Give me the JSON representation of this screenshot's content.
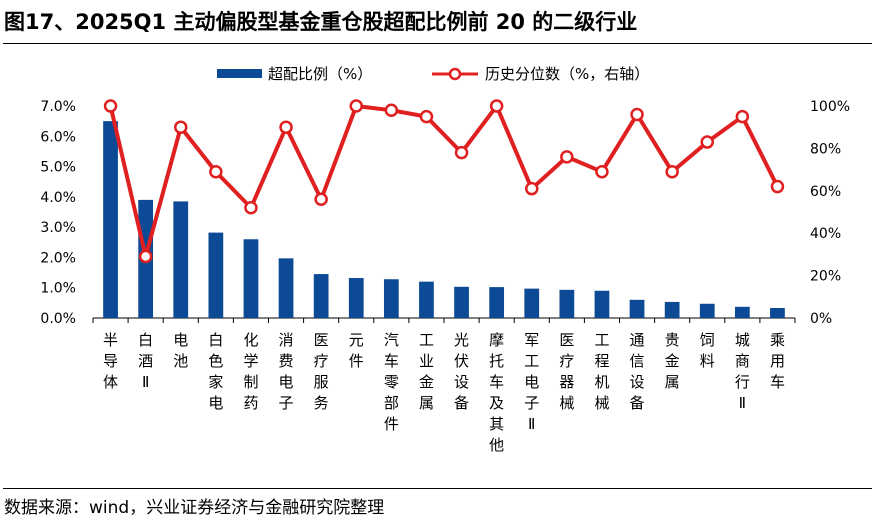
{
  "title": "图17、2025Q1 主动偏股型基金重仓股超配比例前 20 的二级行业",
  "source": "数据来源：wind，兴业证券经济与金融研究院整理",
  "chart_data": {
    "type": "bar+line",
    "categories": [
      "半导体",
      "白酒Ⅱ",
      "电池",
      "白色家电",
      "化学制药",
      "消费电子",
      "医疗服务",
      "元件",
      "汽车零部件",
      "工业金属",
      "光伏设备",
      "摩托车及其他",
      "军工电子Ⅱ",
      "医疗器械",
      "工程机械",
      "通信设备",
      "贵金属",
      "饲料",
      "城商行Ⅱ",
      "乘用车"
    ],
    "series": [
      {
        "name": "超配比例（%）",
        "kind": "bar",
        "axis": "left",
        "color": "#0d4a96",
        "values": [
          6.5,
          3.9,
          3.85,
          2.82,
          2.6,
          1.97,
          1.45,
          1.32,
          1.28,
          1.2,
          1.03,
          1.02,
          0.97,
          0.93,
          0.9,
          0.6,
          0.53,
          0.47,
          0.37,
          0.33
        ]
      },
      {
        "name": "历史分位数（%，右轴）",
        "kind": "line",
        "axis": "right",
        "color": "#e02020",
        "values": [
          100,
          29,
          90,
          69,
          52,
          90,
          56,
          100,
          98,
          95,
          78,
          100,
          61,
          76,
          69,
          96,
          69,
          83,
          95,
          62
        ]
      }
    ],
    "left_axis": {
      "min": 0,
      "max": 7,
      "step": 1,
      "tick_labels": [
        "0.0%",
        "1.0%",
        "2.0%",
        "3.0%",
        "4.0%",
        "5.0%",
        "6.0%",
        "7.0%"
      ]
    },
    "right_axis": {
      "min": 0,
      "max": 100,
      "step": 20,
      "tick_labels": [
        "0%",
        "20%",
        "40%",
        "60%",
        "80%",
        "100%"
      ]
    },
    "legend_position": "top-center",
    "grid": false
  }
}
